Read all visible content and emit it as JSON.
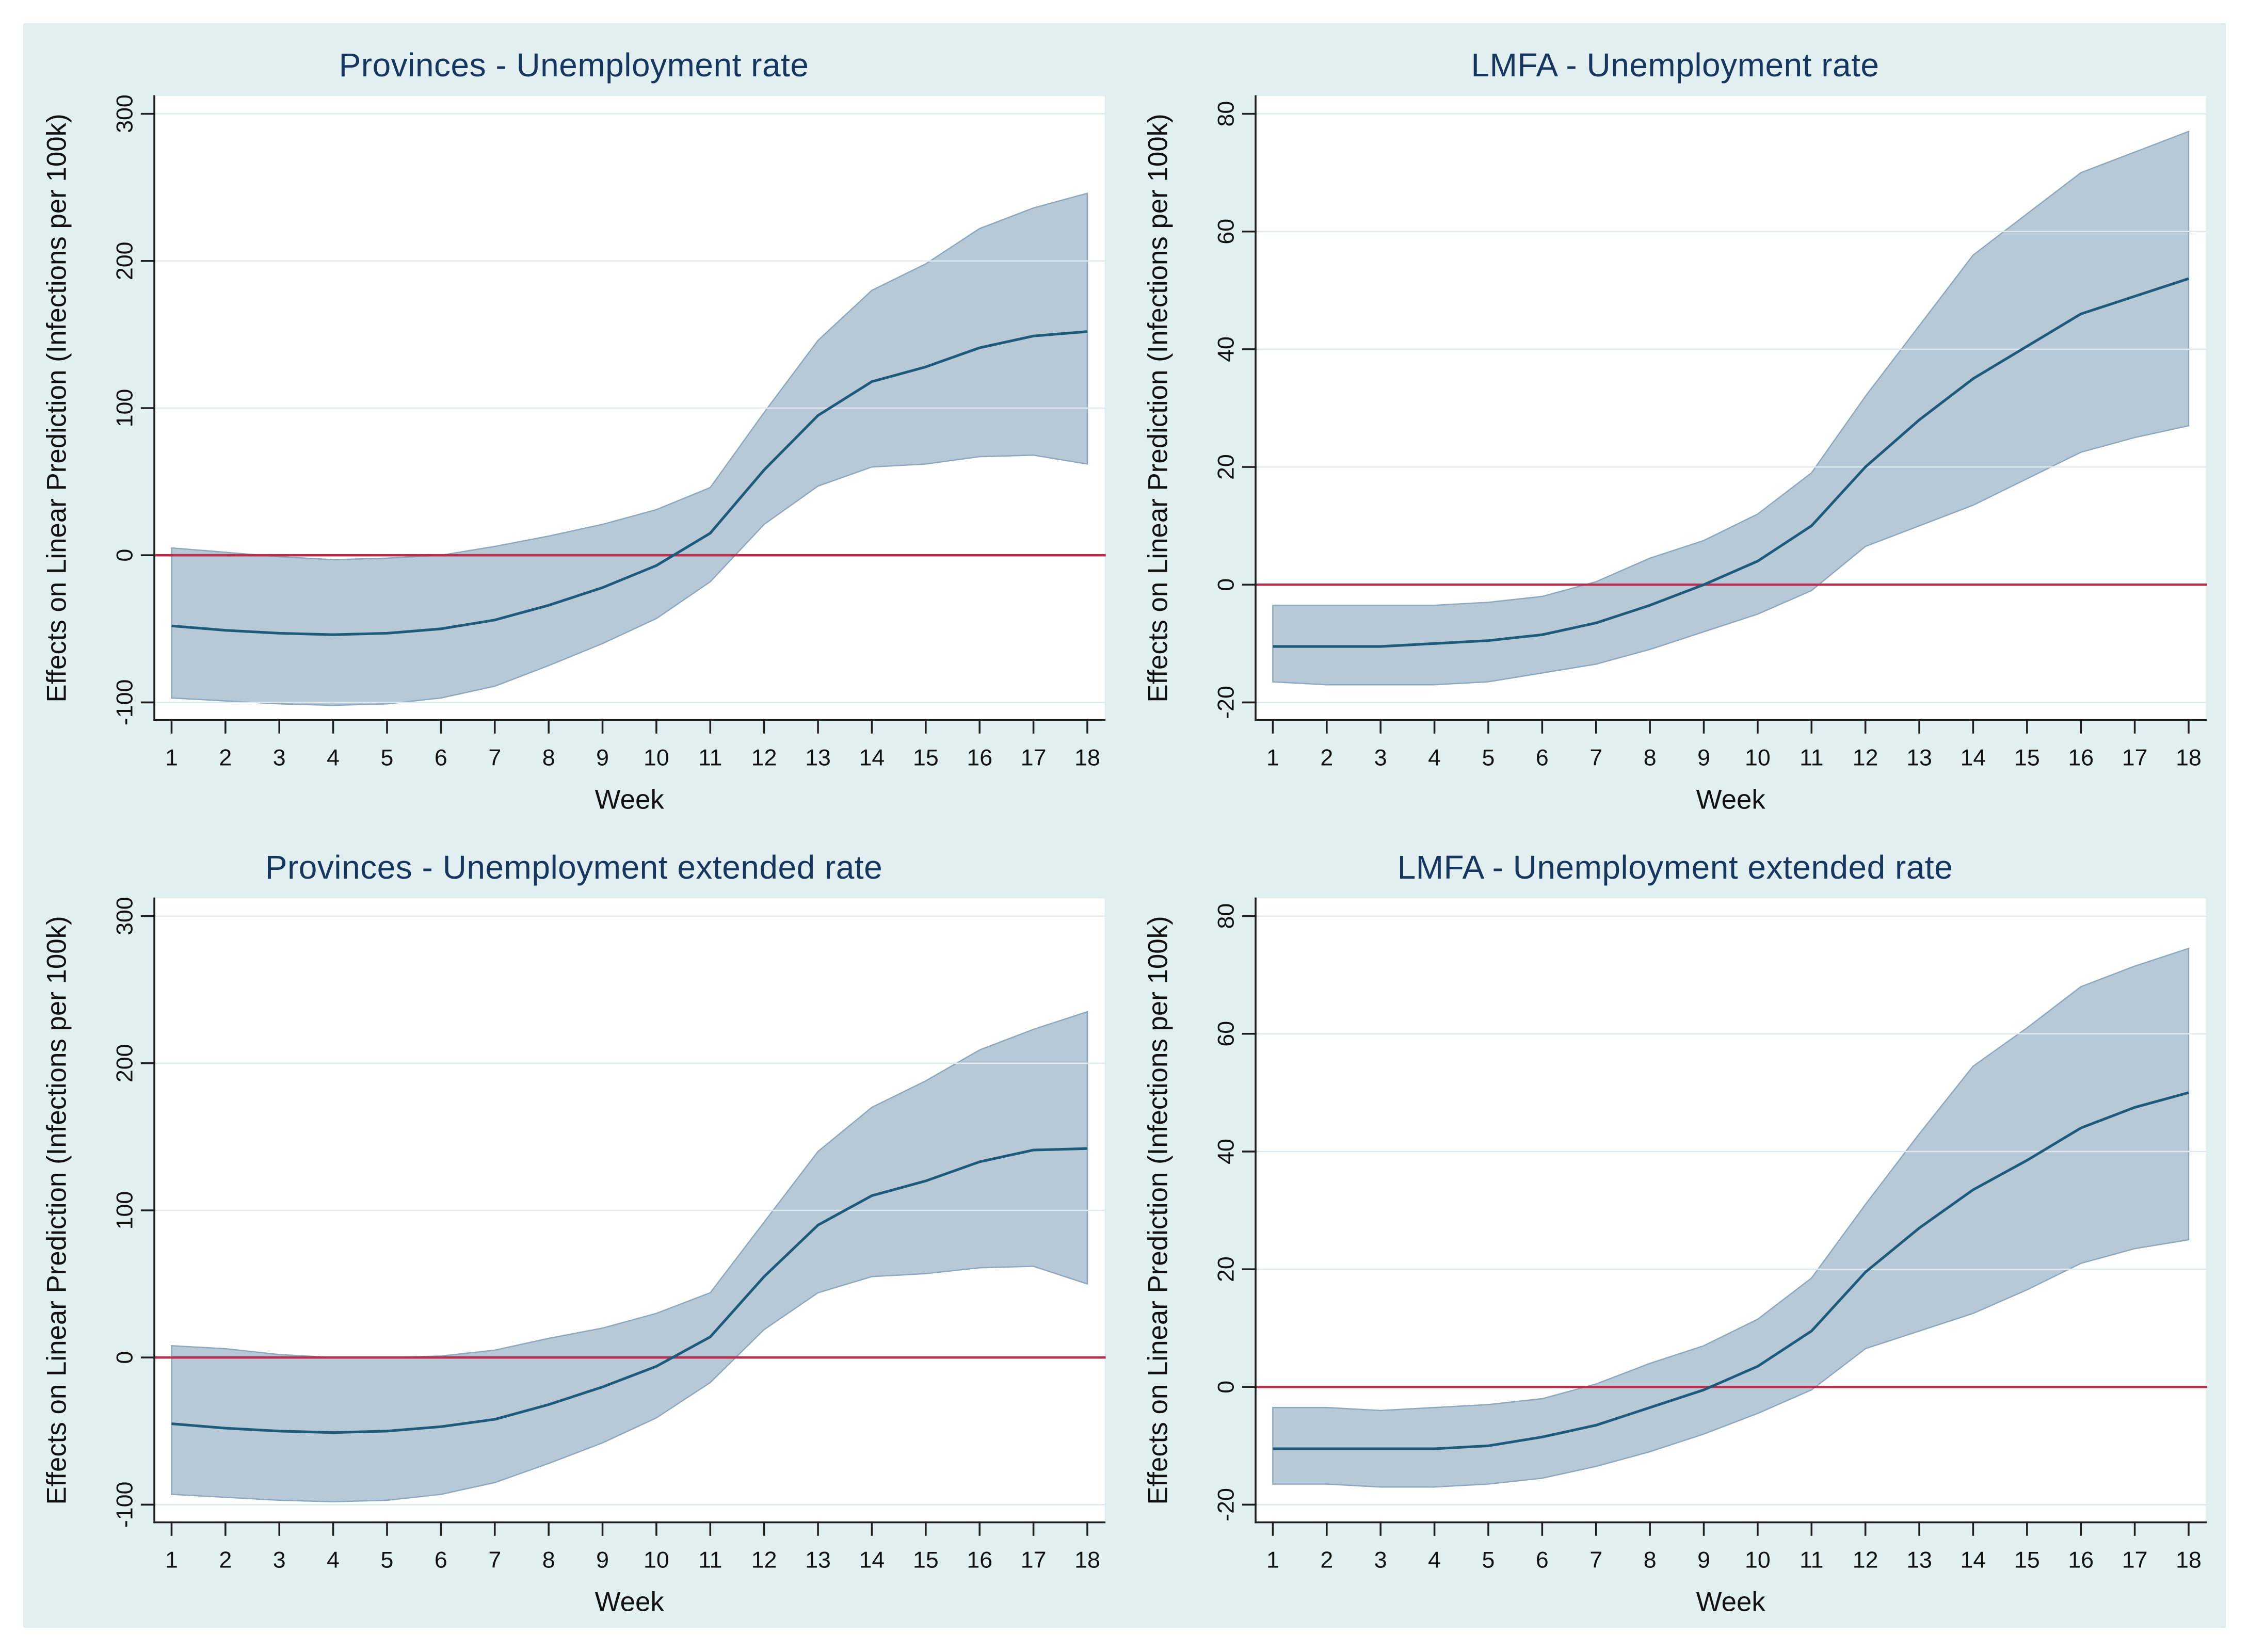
{
  "figure": {
    "background": "#e1eff0",
    "plot_background": "#ffffff"
  },
  "colors": {
    "band_fill": "#b7c8d6",
    "band_edge": "#8ea9bf",
    "effect_line": "#1d5b7c",
    "zero_line": "#bb2e4e",
    "axis": "#1f1f1f",
    "grid": "#dfe9ee",
    "tick_text": "#111111",
    "title_text": "#16365f"
  },
  "chart_data": [
    {
      "type": "line",
      "title": "Provinces - Unemployment rate",
      "xlabel": "Week",
      "ylabel": "Effects on Linear Prediction (Infections per 100k)",
      "legend": "none",
      "grid": "horizontal",
      "x": [
        1,
        2,
        3,
        4,
        5,
        6,
        7,
        8,
        9,
        10,
        11,
        12,
        13,
        14,
        15,
        16,
        17,
        18
      ],
      "xticks": [
        1,
        2,
        3,
        4,
        5,
        6,
        7,
        8,
        9,
        10,
        11,
        12,
        13,
        14,
        15,
        16,
        17,
        18
      ],
      "yticks": [
        -100,
        0,
        100,
        200,
        300
      ],
      "ylim": [
        -112,
        312
      ],
      "ref_y": 0,
      "series": [
        {
          "name": "effect",
          "values": [
            -48,
            -51,
            -53,
            -54,
            -53,
            -50,
            -44,
            -34,
            -22,
            -7,
            15,
            58,
            95,
            118,
            128,
            141,
            149,
            152
          ]
        },
        {
          "name": "ci_upper",
          "values": [
            5,
            2,
            -1,
            -3,
            -2,
            0,
            6,
            13,
            21,
            31,
            46,
            97,
            146,
            180,
            198,
            222,
            236,
            246
          ]
        },
        {
          "name": "ci_lower",
          "values": [
            -97,
            -99,
            -101,
            -102,
            -101,
            -97,
            -89,
            -75,
            -60,
            -43,
            -18,
            21,
            47,
            60,
            62,
            67,
            68,
            62
          ]
        }
      ]
    },
    {
      "type": "line",
      "title": "LMFA - Unemployment rate",
      "xlabel": "Week",
      "ylabel": "Effects on Linear Prediction (Infections per 100k)",
      "legend": "none",
      "grid": "horizontal",
      "x": [
        1,
        2,
        3,
        4,
        5,
        6,
        7,
        8,
        9,
        10,
        11,
        12,
        13,
        14,
        15,
        16,
        17,
        18
      ],
      "xticks": [
        1,
        2,
        3,
        4,
        5,
        6,
        7,
        8,
        9,
        10,
        11,
        12,
        13,
        14,
        15,
        16,
        17,
        18
      ],
      "yticks": [
        -20,
        0,
        20,
        40,
        60,
        80
      ],
      "ylim": [
        -23,
        83
      ],
      "ref_y": 0,
      "series": [
        {
          "name": "effect",
          "values": [
            -10.5,
            -10.5,
            -10.5,
            -10,
            -9.5,
            -8.5,
            -6.5,
            -3.5,
            0,
            4,
            10,
            20,
            28,
            35,
            40.5,
            46,
            49,
            52
          ]
        },
        {
          "name": "ci_upper",
          "values": [
            -3.5,
            -3.5,
            -3.5,
            -3.5,
            -3,
            -2,
            0.5,
            4.5,
            7.5,
            12,
            19,
            32,
            44,
            56,
            63,
            70,
            73.5,
            77
          ]
        },
        {
          "name": "ci_lower",
          "values": [
            -16.5,
            -17,
            -17,
            -17,
            -16.5,
            -15,
            -13.5,
            -11,
            -8,
            -5,
            -1,
            6.5,
            10,
            13.5,
            18,
            22.5,
            25,
            27
          ]
        }
      ]
    },
    {
      "type": "line",
      "title": "Provinces - Unemployment extended rate",
      "xlabel": "Week",
      "ylabel": "Effects on Linear Prediction (Infections per 100k)",
      "legend": "none",
      "grid": "horizontal",
      "x": [
        1,
        2,
        3,
        4,
        5,
        6,
        7,
        8,
        9,
        10,
        11,
        12,
        13,
        14,
        15,
        16,
        17,
        18
      ],
      "xticks": [
        1,
        2,
        3,
        4,
        5,
        6,
        7,
        8,
        9,
        10,
        11,
        12,
        13,
        14,
        15,
        16,
        17,
        18
      ],
      "yticks": [
        -100,
        0,
        100,
        200,
        300
      ],
      "ylim": [
        -112,
        312
      ],
      "ref_y": 0,
      "series": [
        {
          "name": "effect",
          "values": [
            -45,
            -48,
            -50,
            -51,
            -50,
            -47,
            -42,
            -32,
            -20,
            -6,
            14,
            55,
            90,
            110,
            120,
            133,
            141,
            142
          ]
        },
        {
          "name": "ci_upper",
          "values": [
            8,
            6,
            2,
            0,
            0,
            1,
            5,
            13,
            20,
            30,
            44,
            92,
            140,
            170,
            188,
            209,
            223,
            235
          ]
        },
        {
          "name": "ci_lower",
          "values": [
            -93,
            -95,
            -97,
            -98,
            -97,
            -93,
            -85,
            -72,
            -58,
            -41,
            -17,
            19,
            44,
            55,
            57,
            61,
            62,
            50
          ]
        }
      ]
    },
    {
      "type": "line",
      "title": "LMFA - Unemployment extended rate",
      "xlabel": "Week",
      "ylabel": "Effects on Linear Prediction (Infections per 100k)",
      "legend": "none",
      "grid": "horizontal",
      "x": [
        1,
        2,
        3,
        4,
        5,
        6,
        7,
        8,
        9,
        10,
        11,
        12,
        13,
        14,
        15,
        16,
        17,
        18
      ],
      "xticks": [
        1,
        2,
        3,
        4,
        5,
        6,
        7,
        8,
        9,
        10,
        11,
        12,
        13,
        14,
        15,
        16,
        17,
        18
      ],
      "yticks": [
        -20,
        0,
        20,
        40,
        60,
        80
      ],
      "ylim": [
        -23,
        83
      ],
      "ref_y": 0,
      "series": [
        {
          "name": "effect",
          "values": [
            -10.5,
            -10.5,
            -10.5,
            -10.5,
            -10,
            -8.5,
            -6.5,
            -3.5,
            -0.5,
            3.5,
            9.5,
            19.5,
            27,
            33.5,
            38.5,
            44,
            47.5,
            50
          ]
        },
        {
          "name": "ci_upper",
          "values": [
            -3.5,
            -3.5,
            -4,
            -3.5,
            -3,
            -2,
            0.5,
            4,
            7,
            11.5,
            18.5,
            31,
            43,
            54.5,
            61,
            68,
            71.5,
            74.5
          ]
        },
        {
          "name": "ci_lower",
          "values": [
            -16.5,
            -16.5,
            -17,
            -17,
            -16.5,
            -15.5,
            -13.5,
            -11,
            -8,
            -4.5,
            -0.5,
            6.5,
            9.5,
            12.5,
            16.5,
            21,
            23.5,
            25
          ]
        }
      ]
    }
  ]
}
